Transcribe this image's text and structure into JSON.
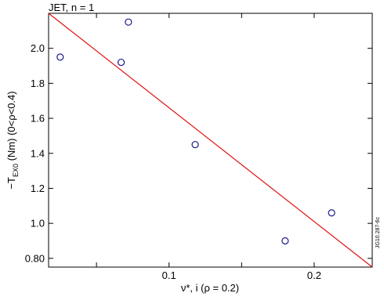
{
  "chart_data": {
    "type": "scatter",
    "title": "JET, n = 1",
    "xlabel": "ν*, i (ρ = 0.2)",
    "ylabel": "−T_EX0 (Nm) (0<ρ<0.4)",
    "ylabel_parts": {
      "prefix": "−T",
      "subscript": "EX0",
      "suffix": " (Nm) (0<ρ<0.4)"
    },
    "xlim": [
      0.017,
      0.24
    ],
    "ylim": [
      0.75,
      2.2
    ],
    "x_ticks": [
      {
        "value": 0.05,
        "label": ""
      },
      {
        "value": 0.1,
        "label": "0.1"
      },
      {
        "value": 0.15,
        "label": ""
      },
      {
        "value": 0.2,
        "label": "0.2"
      }
    ],
    "y_ticks": [
      {
        "value": 0.8,
        "label": "0.80"
      },
      {
        "value": 1.0,
        "label": "1.0"
      },
      {
        "value": 1.2,
        "label": "1.2"
      },
      {
        "value": 1.4,
        "label": "1.4"
      },
      {
        "value": 1.6,
        "label": "1.6"
      },
      {
        "value": 1.8,
        "label": "1.8"
      },
      {
        "value": 2.0,
        "label": "2.0"
      }
    ],
    "points": [
      {
        "x": 0.025,
        "y": 1.95
      },
      {
        "x": 0.067,
        "y": 1.92
      },
      {
        "x": 0.072,
        "y": 2.15
      },
      {
        "x": 0.118,
        "y": 1.45
      },
      {
        "x": 0.18,
        "y": 0.9
      },
      {
        "x": 0.212,
        "y": 1.06
      }
    ],
    "fit_line": {
      "x": [
        0.017,
        0.24
      ],
      "y": [
        2.2,
        0.75
      ]
    },
    "colors": {
      "points": "#1a1a8c",
      "fit_line": "#e01010",
      "axes": "#000000"
    },
    "grid": false,
    "legend": "none",
    "watermark": "JG10.287-6c"
  }
}
